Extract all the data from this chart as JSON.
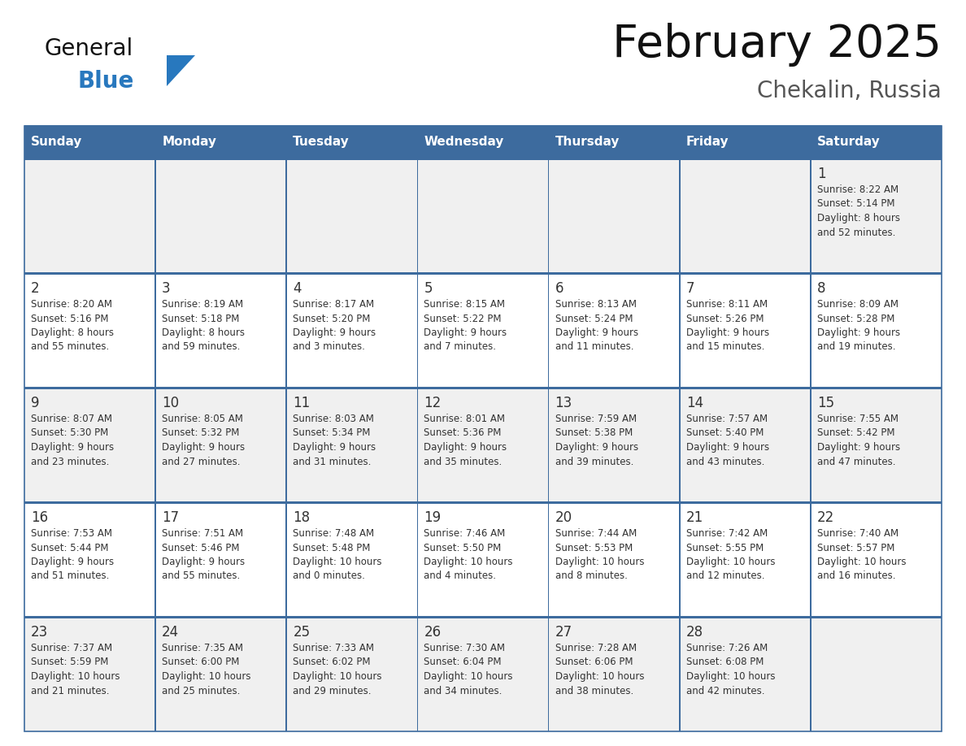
{
  "title": "February 2025",
  "subtitle": "Chekalin, Russia",
  "header_bg": "#3D6B9E",
  "header_text_color": "#FFFFFF",
  "cell_bg_odd": "#F0F0F0",
  "cell_bg_even": "#FFFFFF",
  "text_color": "#333333",
  "border_color": "#3D6B9E",
  "days_of_week": [
    "Sunday",
    "Monday",
    "Tuesday",
    "Wednesday",
    "Thursday",
    "Friday",
    "Saturday"
  ],
  "logo_general_color": "#111111",
  "logo_blue_color": "#2878BE",
  "logo_triangle_color": "#2878BE",
  "weeks": [
    [
      {
        "day": null,
        "info": null
      },
      {
        "day": null,
        "info": null
      },
      {
        "day": null,
        "info": null
      },
      {
        "day": null,
        "info": null
      },
      {
        "day": null,
        "info": null
      },
      {
        "day": null,
        "info": null
      },
      {
        "day": "1",
        "info": "Sunrise: 8:22 AM\nSunset: 5:14 PM\nDaylight: 8 hours\nand 52 minutes."
      }
    ],
    [
      {
        "day": "2",
        "info": "Sunrise: 8:20 AM\nSunset: 5:16 PM\nDaylight: 8 hours\nand 55 minutes."
      },
      {
        "day": "3",
        "info": "Sunrise: 8:19 AM\nSunset: 5:18 PM\nDaylight: 8 hours\nand 59 minutes."
      },
      {
        "day": "4",
        "info": "Sunrise: 8:17 AM\nSunset: 5:20 PM\nDaylight: 9 hours\nand 3 minutes."
      },
      {
        "day": "5",
        "info": "Sunrise: 8:15 AM\nSunset: 5:22 PM\nDaylight: 9 hours\nand 7 minutes."
      },
      {
        "day": "6",
        "info": "Sunrise: 8:13 AM\nSunset: 5:24 PM\nDaylight: 9 hours\nand 11 minutes."
      },
      {
        "day": "7",
        "info": "Sunrise: 8:11 AM\nSunset: 5:26 PM\nDaylight: 9 hours\nand 15 minutes."
      },
      {
        "day": "8",
        "info": "Sunrise: 8:09 AM\nSunset: 5:28 PM\nDaylight: 9 hours\nand 19 minutes."
      }
    ],
    [
      {
        "day": "9",
        "info": "Sunrise: 8:07 AM\nSunset: 5:30 PM\nDaylight: 9 hours\nand 23 minutes."
      },
      {
        "day": "10",
        "info": "Sunrise: 8:05 AM\nSunset: 5:32 PM\nDaylight: 9 hours\nand 27 minutes."
      },
      {
        "day": "11",
        "info": "Sunrise: 8:03 AM\nSunset: 5:34 PM\nDaylight: 9 hours\nand 31 minutes."
      },
      {
        "day": "12",
        "info": "Sunrise: 8:01 AM\nSunset: 5:36 PM\nDaylight: 9 hours\nand 35 minutes."
      },
      {
        "day": "13",
        "info": "Sunrise: 7:59 AM\nSunset: 5:38 PM\nDaylight: 9 hours\nand 39 minutes."
      },
      {
        "day": "14",
        "info": "Sunrise: 7:57 AM\nSunset: 5:40 PM\nDaylight: 9 hours\nand 43 minutes."
      },
      {
        "day": "15",
        "info": "Sunrise: 7:55 AM\nSunset: 5:42 PM\nDaylight: 9 hours\nand 47 minutes."
      }
    ],
    [
      {
        "day": "16",
        "info": "Sunrise: 7:53 AM\nSunset: 5:44 PM\nDaylight: 9 hours\nand 51 minutes."
      },
      {
        "day": "17",
        "info": "Sunrise: 7:51 AM\nSunset: 5:46 PM\nDaylight: 9 hours\nand 55 minutes."
      },
      {
        "day": "18",
        "info": "Sunrise: 7:48 AM\nSunset: 5:48 PM\nDaylight: 10 hours\nand 0 minutes."
      },
      {
        "day": "19",
        "info": "Sunrise: 7:46 AM\nSunset: 5:50 PM\nDaylight: 10 hours\nand 4 minutes."
      },
      {
        "day": "20",
        "info": "Sunrise: 7:44 AM\nSunset: 5:53 PM\nDaylight: 10 hours\nand 8 minutes."
      },
      {
        "day": "21",
        "info": "Sunrise: 7:42 AM\nSunset: 5:55 PM\nDaylight: 10 hours\nand 12 minutes."
      },
      {
        "day": "22",
        "info": "Sunrise: 7:40 AM\nSunset: 5:57 PM\nDaylight: 10 hours\nand 16 minutes."
      }
    ],
    [
      {
        "day": "23",
        "info": "Sunrise: 7:37 AM\nSunset: 5:59 PM\nDaylight: 10 hours\nand 21 minutes."
      },
      {
        "day": "24",
        "info": "Sunrise: 7:35 AM\nSunset: 6:00 PM\nDaylight: 10 hours\nand 25 minutes."
      },
      {
        "day": "25",
        "info": "Sunrise: 7:33 AM\nSunset: 6:02 PM\nDaylight: 10 hours\nand 29 minutes."
      },
      {
        "day": "26",
        "info": "Sunrise: 7:30 AM\nSunset: 6:04 PM\nDaylight: 10 hours\nand 34 minutes."
      },
      {
        "day": "27",
        "info": "Sunrise: 7:28 AM\nSunset: 6:06 PM\nDaylight: 10 hours\nand 38 minutes."
      },
      {
        "day": "28",
        "info": "Sunrise: 7:26 AM\nSunset: 6:08 PM\nDaylight: 10 hours\nand 42 minutes."
      },
      {
        "day": null,
        "info": null
      }
    ]
  ]
}
